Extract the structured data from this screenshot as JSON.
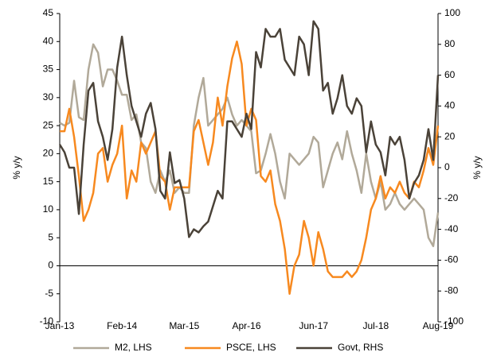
{
  "chart_data": {
    "type": "line",
    "categories": [
      "Jan-13",
      null,
      null,
      null,
      null,
      null,
      null,
      null,
      null,
      null,
      null,
      null,
      null,
      "Feb-14",
      null,
      null,
      null,
      null,
      null,
      null,
      null,
      null,
      null,
      null,
      null,
      null,
      "Mar-15",
      null,
      null,
      null,
      null,
      null,
      null,
      null,
      null,
      null,
      null,
      null,
      null,
      "Apr-16",
      null,
      null,
      null,
      null,
      null,
      null,
      null,
      null,
      null,
      null,
      null,
      null,
      null,
      "Jun-17",
      null,
      null,
      null,
      null,
      null,
      null,
      null,
      null,
      null,
      null,
      null,
      null,
      "Jul-18",
      null,
      null,
      null,
      null,
      null,
      null,
      null,
      null,
      null,
      null,
      null,
      null,
      "Aug-19"
    ],
    "series": [
      {
        "name": "M2, LHS",
        "color": "#b1a999",
        "values": [
          25.5,
          25,
          25.5,
          33,
          26.5,
          26,
          35,
          39.5,
          38,
          32,
          35,
          35,
          33,
          30.5,
          30.5,
          26,
          27,
          22,
          21,
          15,
          13,
          17,
          15,
          17,
          13,
          14,
          13,
          13,
          25,
          30,
          33.5,
          25,
          26,
          27,
          28,
          30,
          27,
          25,
          26,
          25,
          24,
          16.5,
          17,
          20,
          23.5,
          20,
          15,
          12,
          20,
          19,
          18,
          19,
          20,
          23,
          22,
          14,
          17,
          20,
          22,
          19,
          24,
          20,
          17,
          13,
          20,
          15,
          12,
          15,
          10,
          11,
          13,
          11,
          10,
          11,
          12,
          11,
          10,
          5,
          3.5,
          9.5
        ]
      },
      {
        "name": "PSCE, LHS",
        "color": "#f7891f",
        "values": [
          24,
          24,
          28,
          23,
          16,
          8,
          10,
          13,
          20,
          21,
          15,
          18,
          20,
          25,
          12,
          17,
          15,
          22,
          20,
          22,
          24,
          16,
          15,
          10,
          14,
          14,
          14,
          14,
          24,
          26,
          22,
          18,
          22,
          30,
          25,
          32,
          37,
          40,
          36,
          25,
          28,
          26,
          16,
          15,
          17,
          11,
          8,
          3,
          -5,
          0,
          2,
          8,
          5,
          0,
          6,
          3,
          -1,
          -2,
          -2,
          -2,
          -1,
          -2,
          -1,
          1,
          5,
          10,
          12,
          16,
          12,
          14,
          13,
          15,
          13,
          12,
          15,
          14,
          17,
          21,
          18,
          25
        ]
      },
      {
        "name": "Govt, RHS",
        "color": "#4a4238",
        "axis": "y2",
        "values": [
          15,
          10,
          0,
          0,
          -30,
          15,
          50,
          55,
          30,
          20,
          5,
          25,
          65,
          85,
          60,
          40,
          30,
          20,
          35,
          42,
          25,
          -15,
          -20,
          10,
          -10,
          -8,
          -20,
          -45,
          -40,
          -42,
          -38,
          -35,
          -25,
          -15,
          -20,
          30,
          30,
          25,
          20,
          35,
          25,
          75,
          65,
          90,
          85,
          85,
          90,
          70,
          65,
          60,
          85,
          80,
          60,
          95,
          90,
          50,
          55,
          35,
          45,
          60,
          40,
          35,
          45,
          40,
          10,
          30,
          15,
          10,
          -5,
          20,
          15,
          20,
          5,
          -20,
          -10,
          -5,
          5,
          25,
          5,
          60
        ]
      }
    ],
    "ylabel": "% y/y",
    "y2label": "% y/y",
    "ylim": [
      -10,
      45
    ],
    "yticks": [
      -10,
      -5,
      0,
      5,
      10,
      15,
      20,
      25,
      30,
      35,
      40,
      45
    ],
    "y2lim": [
      -100,
      100
    ],
    "y2ticks": [
      -100,
      -80,
      -60,
      -40,
      -20,
      0,
      20,
      40,
      60,
      80,
      100
    ],
    "legend": "bottom"
  }
}
